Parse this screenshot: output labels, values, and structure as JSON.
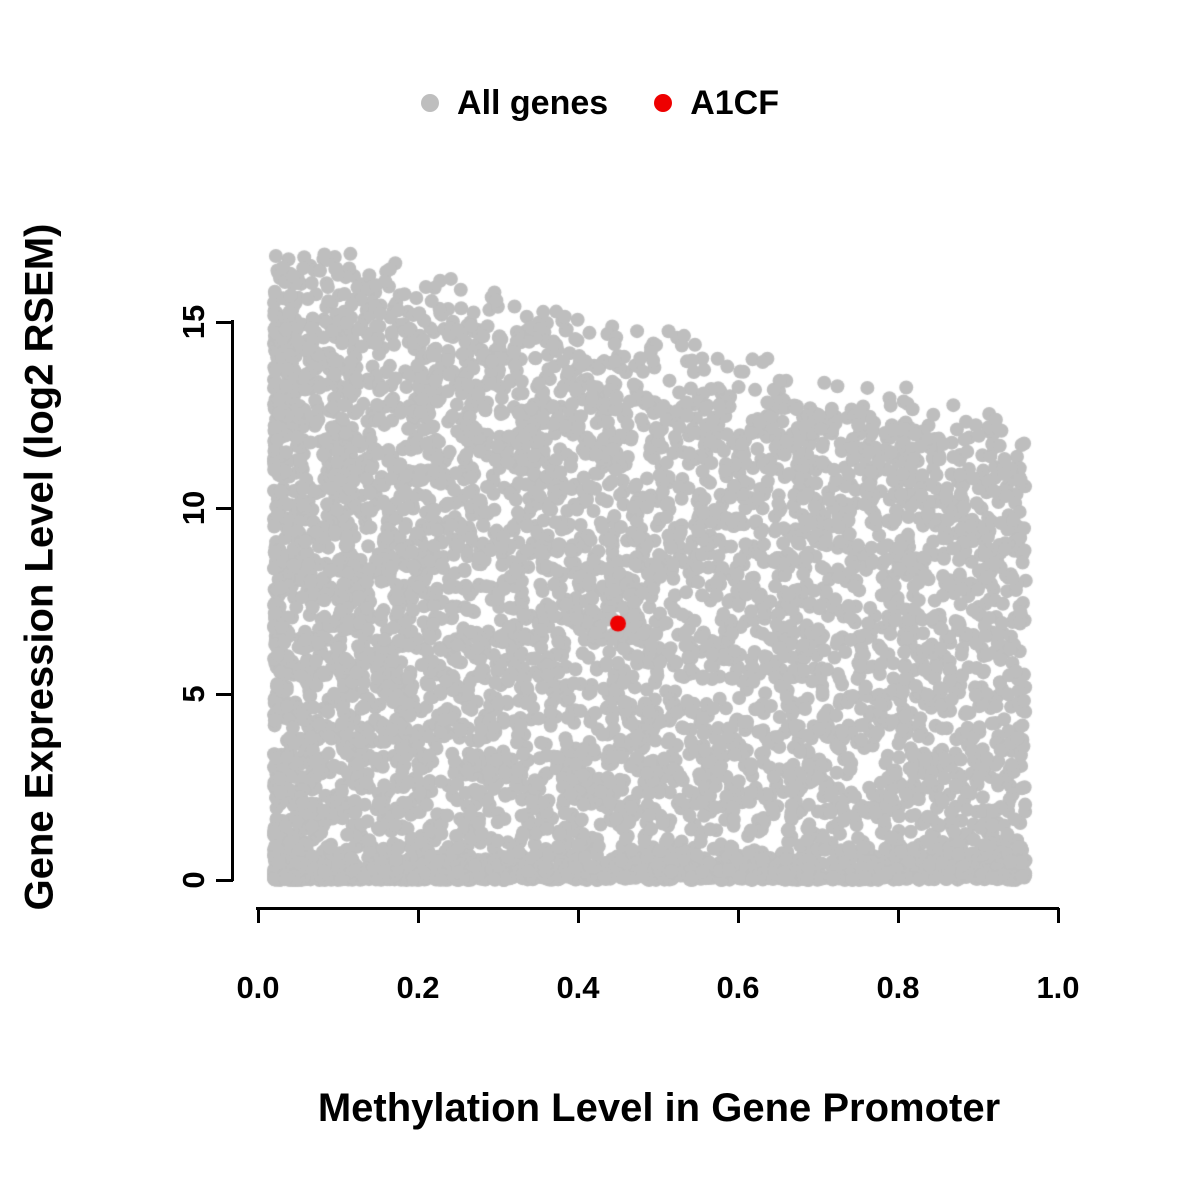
{
  "figure": {
    "background": "#ffffff",
    "text_color": "#000000"
  },
  "chart_data": {
    "type": "scatter",
    "title": "",
    "xlabel": "Methylation Level in Gene Promoter",
    "ylabel": "Gene Expression Level (log2 RSEM)",
    "xlim": [
      0,
      1
    ],
    "ylim": [
      0,
      17
    ],
    "x_ticks": [
      "0.0",
      "0.2",
      "0.4",
      "0.6",
      "0.8",
      "1.0"
    ],
    "x_tick_values": [
      0,
      0.2,
      0.4,
      0.6,
      0.8,
      1.0
    ],
    "y_ticks": [
      "0",
      "5",
      "10",
      "15"
    ],
    "y_tick_values": [
      0,
      5,
      10,
      15
    ],
    "grid": false,
    "legend_position": "top-center",
    "series": [
      {
        "name": "All genes",
        "color": "#bebebe",
        "marker_radius_px": 7,
        "n_points": 6500,
        "seed": 42,
        "x_range": [
          0.02,
          0.96
        ],
        "y_upper_bound": {
          "at_x0": 16.8,
          "slope": -5.2,
          "noise_sd": 0.7
        },
        "description": "Dense cloud of gray points covering 0 to the upper boundary; boundary of maximum expression decreases roughly linearly from ~16.8 at methylation 0 to ~11.8 at methylation 1; extra density near y = 0 and at low methylation values."
      },
      {
        "name": "A1CF",
        "color": "#ee0000",
        "marker_radius_px": 8,
        "points": [
          {
            "x": 0.45,
            "y": 6.9
          }
        ]
      }
    ]
  }
}
